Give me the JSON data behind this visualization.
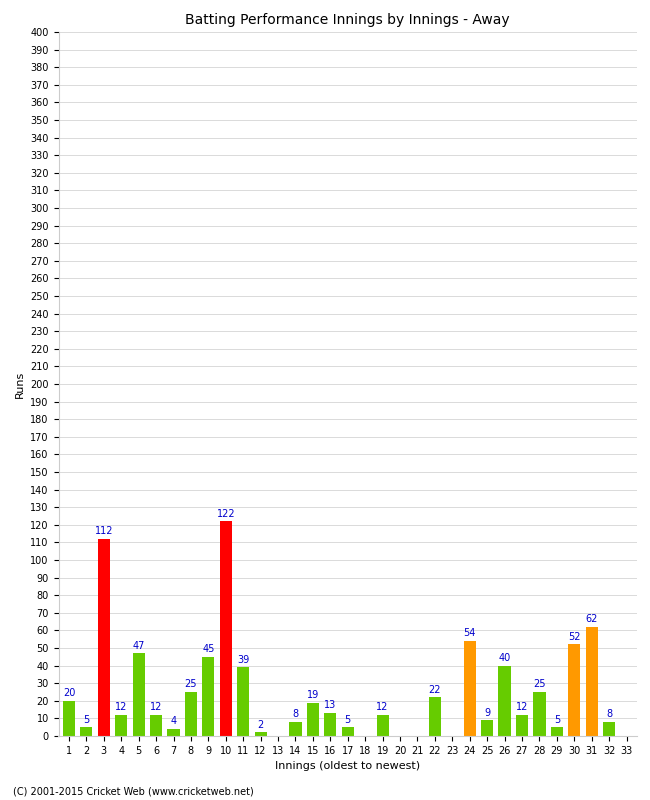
{
  "title": "Batting Performance Innings by Innings - Away",
  "xlabel": "Innings (oldest to newest)",
  "ylabel": "Runs",
  "footer": "(C) 2001-2015 Cricket Web (www.cricketweb.net)",
  "ylim": [
    0,
    400
  ],
  "ytick_step": 10,
  "innings": [
    1,
    2,
    3,
    4,
    5,
    6,
    7,
    8,
    9,
    10,
    11,
    12,
    13,
    14,
    15,
    16,
    17,
    18,
    19,
    20,
    21,
    22,
    23,
    24,
    25,
    26,
    27,
    28,
    29,
    30,
    31,
    32,
    33
  ],
  "values": [
    20,
    5,
    112,
    12,
    47,
    12,
    4,
    25,
    45,
    122,
    39,
    2,
    0,
    8,
    19,
    13,
    5,
    0,
    12,
    0,
    0,
    22,
    0,
    54,
    9,
    40,
    12,
    25,
    5,
    52,
    62,
    8,
    0
  ],
  "colors": [
    "#66cc00",
    "#66cc00",
    "#ff0000",
    "#66cc00",
    "#66cc00",
    "#66cc00",
    "#66cc00",
    "#66cc00",
    "#66cc00",
    "#ff0000",
    "#66cc00",
    "#66cc00",
    "#66cc00",
    "#66cc00",
    "#66cc00",
    "#66cc00",
    "#66cc00",
    "#66cc00",
    "#66cc00",
    "#66cc00",
    "#66cc00",
    "#66cc00",
    "#66cc00",
    "#ff9900",
    "#66cc00",
    "#66cc00",
    "#66cc00",
    "#66cc00",
    "#66cc00",
    "#ff9900",
    "#ff9900",
    "#66cc00",
    "#66cc00"
  ],
  "label_color": "#0000cc",
  "background_color": "#ffffff",
  "grid_color": "#cccccc",
  "title_fontsize": 10,
  "axis_label_fontsize": 8,
  "tick_fontsize": 7,
  "bar_label_fontsize": 7,
  "footer_fontsize": 7
}
